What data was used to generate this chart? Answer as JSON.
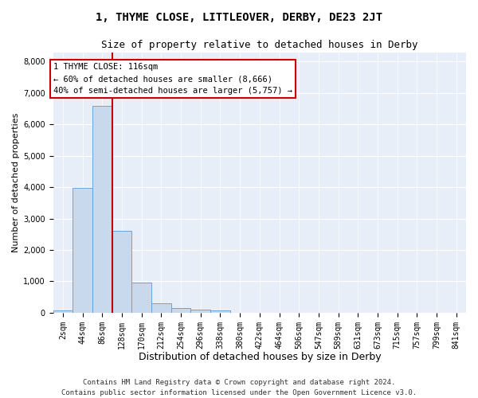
{
  "title": "1, THYME CLOSE, LITTLEOVER, DERBY, DE23 2JT",
  "subtitle": "Size of property relative to detached houses in Derby",
  "xlabel": "Distribution of detached houses by size in Derby",
  "ylabel": "Number of detached properties",
  "footer_line1": "Contains HM Land Registry data © Crown copyright and database right 2024.",
  "footer_line2": "Contains public sector information licensed under the Open Government Licence v3.0.",
  "bar_labels": [
    "2sqm",
    "44sqm",
    "86sqm",
    "128sqm",
    "170sqm",
    "212sqm",
    "254sqm",
    "296sqm",
    "338sqm",
    "380sqm",
    "422sqm",
    "464sqm",
    "506sqm",
    "547sqm",
    "589sqm",
    "631sqm",
    "673sqm",
    "715sqm",
    "757sqm",
    "799sqm",
    "841sqm"
  ],
  "bar_values": [
    70,
    3980,
    6600,
    2620,
    960,
    310,
    140,
    110,
    80,
    0,
    0,
    0,
    0,
    0,
    0,
    0,
    0,
    0,
    0,
    0,
    0
  ],
  "bar_color": "#c9d9ed",
  "bar_edge_color": "#5b9bd5",
  "ylim": [
    0,
    8300
  ],
  "yticks": [
    0,
    1000,
    2000,
    3000,
    4000,
    5000,
    6000,
    7000,
    8000
  ],
  "vline_color": "#cc0000",
  "vline_x_idx": 2.5,
  "annotation_line1": "1 THYME CLOSE: 116sqm",
  "annotation_line2": "← 60% of detached houses are smaller (8,666)",
  "annotation_line3": "40% of semi-detached houses are larger (5,757) →",
  "plot_bg_color": "#e8eef8",
  "grid_color": "#ffffff",
  "title_fontsize": 10,
  "subtitle_fontsize": 9,
  "xlabel_fontsize": 9,
  "ylabel_fontsize": 8,
  "tick_fontsize": 7,
  "annotation_fontsize": 7.5,
  "footer_fontsize": 6.5
}
